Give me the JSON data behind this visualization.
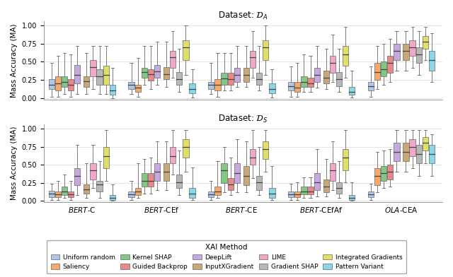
{
  "title_top": "Dataset: $\\mathcal{D}_A$",
  "title_bottom": "Dataset: $\\mathcal{D}_S$",
  "ylabel": "Mass Accuracy (MA)",
  "xlabel": "XAI Method",
  "models": [
    "BERT-C",
    "BERT-CEf",
    "BERT-CE",
    "BERT-CEfAf",
    "OLA-CEA"
  ],
  "model_labels": [
    "$\\it{BERT}$-C",
    "$\\it{BERT}$-CEf",
    "$\\it{BERT}$-CE",
    "$\\it{BERT}$-CEfAf",
    "$\\it{OLA}$-CEA"
  ],
  "methods": [
    "Uniform random",
    "Saliency",
    "Kernel SHAP",
    "Guided Backprop",
    "DeepLift",
    "InputXGradient",
    "LIME",
    "Gradient SHAP",
    "Integrated Gradients",
    "Pattern Variant"
  ],
  "colors": [
    "#aec6e8",
    "#f5a96a",
    "#82c882",
    "#e88888",
    "#c8a8e0",
    "#c8a878",
    "#f0a8c8",
    "#b8b8b8",
    "#e0e068",
    "#88d8e8"
  ],
  "DA": {
    "BERT-C": [
      [
        0.02,
        0.12,
        0.18,
        0.26,
        0.48
      ],
      [
        0.02,
        0.1,
        0.2,
        0.3,
        0.58
      ],
      [
        0.05,
        0.15,
        0.22,
        0.3,
        0.62
      ],
      [
        0.02,
        0.1,
        0.18,
        0.26,
        0.6
      ],
      [
        0.05,
        0.2,
        0.32,
        0.46,
        0.72
      ],
      [
        0.05,
        0.15,
        0.23,
        0.3,
        0.62
      ],
      [
        0.12,
        0.3,
        0.43,
        0.52,
        0.72
      ],
      [
        0.05,
        0.18,
        0.3,
        0.4,
        0.72
      ],
      [
        0.05,
        0.18,
        0.32,
        0.45,
        0.72
      ],
      [
        0.0,
        0.04,
        0.1,
        0.18,
        0.42
      ]
    ],
    "BERT-CEf": [
      [
        0.05,
        0.12,
        0.18,
        0.22,
        0.48
      ],
      [
        0.02,
        0.08,
        0.14,
        0.18,
        0.55
      ],
      [
        0.18,
        0.28,
        0.36,
        0.42,
        0.72
      ],
      [
        0.12,
        0.24,
        0.33,
        0.4,
        0.72
      ],
      [
        0.18,
        0.28,
        0.37,
        0.46,
        0.78
      ],
      [
        0.15,
        0.26,
        0.33,
        0.43,
        0.78
      ],
      [
        0.28,
        0.42,
        0.56,
        0.65,
        0.92
      ],
      [
        0.08,
        0.18,
        0.26,
        0.36,
        0.68
      ],
      [
        0.32,
        0.52,
        0.7,
        0.8,
        1.0
      ],
      [
        0.01,
        0.06,
        0.12,
        0.2,
        0.4
      ]
    ],
    "BERT-CE": [
      [
        0.05,
        0.12,
        0.18,
        0.22,
        0.48
      ],
      [
        0.02,
        0.1,
        0.18,
        0.26,
        0.62
      ],
      [
        0.1,
        0.18,
        0.27,
        0.35,
        0.62
      ],
      [
        0.1,
        0.18,
        0.26,
        0.35,
        0.62
      ],
      [
        0.15,
        0.22,
        0.32,
        0.42,
        0.72
      ],
      [
        0.15,
        0.22,
        0.32,
        0.42,
        0.72
      ],
      [
        0.28,
        0.42,
        0.56,
        0.65,
        0.92
      ],
      [
        0.1,
        0.18,
        0.26,
        0.35,
        0.72
      ],
      [
        0.32,
        0.52,
        0.7,
        0.8,
        1.0
      ],
      [
        0.01,
        0.06,
        0.12,
        0.2,
        0.4
      ]
    ],
    "BERT-CEfAf": [
      [
        0.02,
        0.1,
        0.16,
        0.22,
        0.44
      ],
      [
        0.02,
        0.08,
        0.14,
        0.22,
        0.48
      ],
      [
        0.08,
        0.15,
        0.22,
        0.3,
        0.6
      ],
      [
        0.08,
        0.15,
        0.2,
        0.28,
        0.58
      ],
      [
        0.14,
        0.22,
        0.32,
        0.42,
        0.72
      ],
      [
        0.12,
        0.2,
        0.28,
        0.38,
        0.68
      ],
      [
        0.22,
        0.35,
        0.48,
        0.58,
        0.88
      ],
      [
        0.08,
        0.16,
        0.26,
        0.36,
        0.68
      ],
      [
        0.28,
        0.45,
        0.6,
        0.72,
        0.98
      ],
      [
        0.01,
        0.04,
        0.08,
        0.15,
        0.38
      ]
    ],
    "OLA-CEA": [
      [
        0.02,
        0.1,
        0.16,
        0.22,
        0.44
      ],
      [
        0.12,
        0.25,
        0.36,
        0.48,
        0.72
      ],
      [
        0.18,
        0.3,
        0.4,
        0.5,
        0.75
      ],
      [
        0.22,
        0.35,
        0.48,
        0.58,
        0.82
      ],
      [
        0.38,
        0.52,
        0.65,
        0.75,
        0.92
      ],
      [
        0.38,
        0.52,
        0.65,
        0.75,
        0.92
      ],
      [
        0.42,
        0.58,
        0.7,
        0.8,
        0.98
      ],
      [
        0.32,
        0.48,
        0.6,
        0.7,
        0.92
      ],
      [
        0.52,
        0.68,
        0.78,
        0.86,
        0.98
      ],
      [
        0.22,
        0.38,
        0.52,
        0.65,
        0.9
      ]
    ]
  },
  "DS": {
    "BERT-C": [
      [
        0.01,
        0.05,
        0.1,
        0.14,
        0.24
      ],
      [
        0.01,
        0.05,
        0.09,
        0.13,
        0.28
      ],
      [
        0.04,
        0.08,
        0.13,
        0.2,
        0.36
      ],
      [
        0.01,
        0.05,
        0.09,
        0.13,
        0.28
      ],
      [
        0.08,
        0.22,
        0.35,
        0.45,
        0.78
      ],
      [
        0.04,
        0.1,
        0.16,
        0.23,
        0.52
      ],
      [
        0.18,
        0.3,
        0.42,
        0.52,
        0.78
      ],
      [
        0.04,
        0.13,
        0.23,
        0.28,
        0.55
      ],
      [
        0.28,
        0.45,
        0.62,
        0.75,
        0.98
      ],
      [
        0.0,
        0.01,
        0.04,
        0.08,
        0.23
      ]
    ],
    "BERT-CEf": [
      [
        0.01,
        0.05,
        0.09,
        0.13,
        0.28
      ],
      [
        0.04,
        0.08,
        0.13,
        0.18,
        0.52
      ],
      [
        0.1,
        0.2,
        0.28,
        0.38,
        0.58
      ],
      [
        0.1,
        0.2,
        0.28,
        0.38,
        0.6
      ],
      [
        0.15,
        0.28,
        0.4,
        0.52,
        0.82
      ],
      [
        0.15,
        0.28,
        0.4,
        0.52,
        0.82
      ],
      [
        0.36,
        0.52,
        0.62,
        0.75,
        0.98
      ],
      [
        0.08,
        0.18,
        0.26,
        0.36,
        0.7
      ],
      [
        0.4,
        0.6,
        0.75,
        0.85,
        0.98
      ],
      [
        0.01,
        0.04,
        0.1,
        0.18,
        0.46
      ]
    ],
    "BERT-CE": [
      [
        0.01,
        0.05,
        0.09,
        0.13,
        0.28
      ],
      [
        0.04,
        0.08,
        0.13,
        0.2,
        0.55
      ],
      [
        0.12,
        0.25,
        0.42,
        0.52,
        0.75
      ],
      [
        0.08,
        0.15,
        0.23,
        0.32,
        0.6
      ],
      [
        0.12,
        0.25,
        0.38,
        0.52,
        0.85
      ],
      [
        0.12,
        0.22,
        0.35,
        0.48,
        0.82
      ],
      [
        0.32,
        0.5,
        0.6,
        0.72,
        0.98
      ],
      [
        0.08,
        0.15,
        0.26,
        0.35,
        0.75
      ],
      [
        0.4,
        0.58,
        0.72,
        0.82,
        0.98
      ],
      [
        0.01,
        0.04,
        0.1,
        0.18,
        0.48
      ]
    ],
    "BERT-CEfAf": [
      [
        0.01,
        0.05,
        0.09,
        0.13,
        0.24
      ],
      [
        0.01,
        0.05,
        0.09,
        0.13,
        0.26
      ],
      [
        0.04,
        0.09,
        0.13,
        0.2,
        0.33
      ],
      [
        0.04,
        0.09,
        0.13,
        0.2,
        0.33
      ],
      [
        0.06,
        0.15,
        0.26,
        0.38,
        0.72
      ],
      [
        0.06,
        0.12,
        0.2,
        0.3,
        0.58
      ],
      [
        0.15,
        0.28,
        0.42,
        0.52,
        0.82
      ],
      [
        0.04,
        0.1,
        0.18,
        0.26,
        0.55
      ],
      [
        0.26,
        0.42,
        0.6,
        0.72,
        0.98
      ],
      [
        0.0,
        0.01,
        0.04,
        0.08,
        0.26
      ]
    ],
    "OLA-CEA": [
      [
        0.01,
        0.05,
        0.09,
        0.13,
        0.24
      ],
      [
        0.12,
        0.22,
        0.35,
        0.45,
        0.68
      ],
      [
        0.18,
        0.28,
        0.38,
        0.48,
        0.7
      ],
      [
        0.2,
        0.3,
        0.4,
        0.5,
        0.72
      ],
      [
        0.4,
        0.55,
        0.68,
        0.8,
        0.98
      ],
      [
        0.4,
        0.55,
        0.68,
        0.8,
        0.98
      ],
      [
        0.45,
        0.62,
        0.75,
        0.85,
        0.98
      ],
      [
        0.35,
        0.52,
        0.65,
        0.78,
        0.98
      ],
      [
        0.52,
        0.7,
        0.8,
        0.88,
        0.98
      ],
      [
        0.35,
        0.52,
        0.65,
        0.78,
        0.92
      ]
    ]
  }
}
